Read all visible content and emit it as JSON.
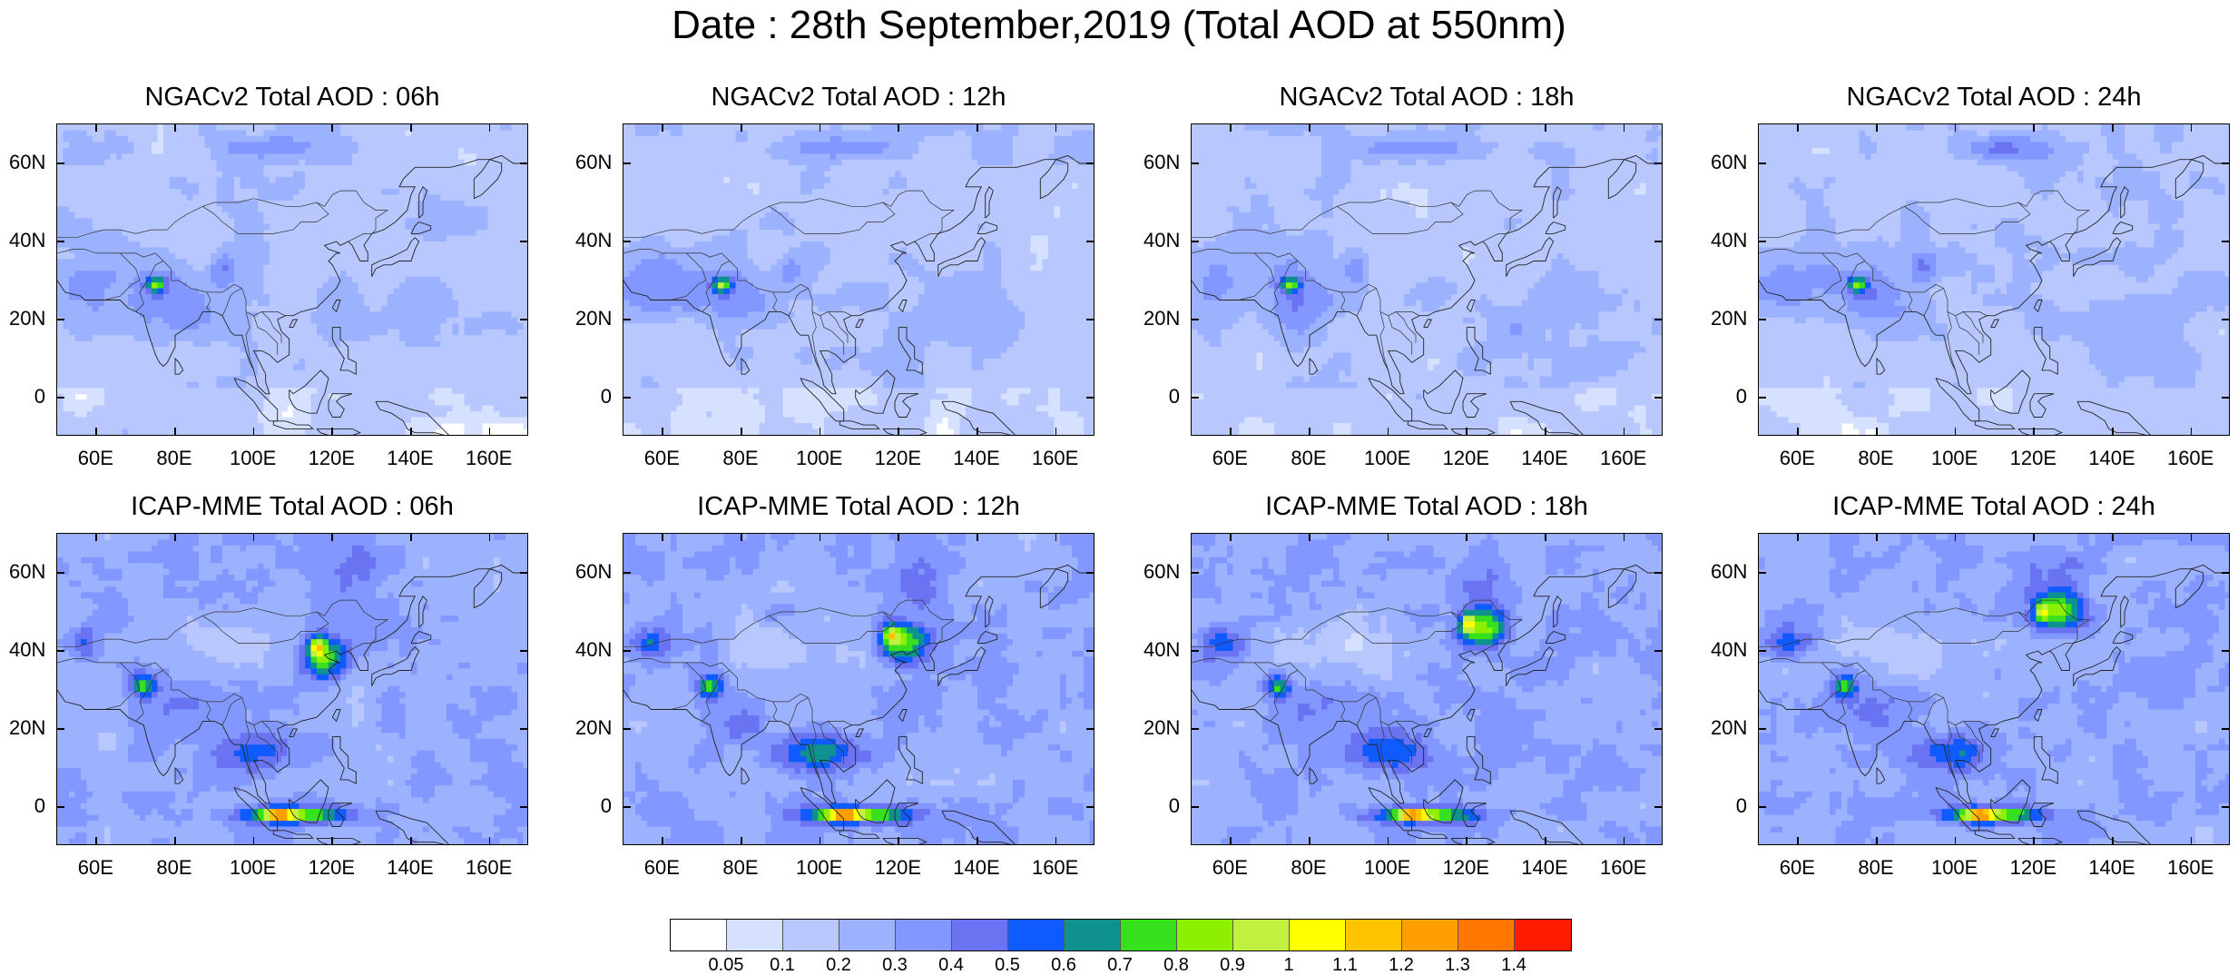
{
  "title": "Date : 28th September,2019 (Total AOD at 550nm)",
  "panels": [
    {
      "title": "NGACv2 Total AOD : 06h",
      "model": "NGACv2",
      "forecast_hour": "06h"
    },
    {
      "title": "NGACv2 Total AOD : 12h",
      "model": "NGACv2",
      "forecast_hour": "12h"
    },
    {
      "title": "NGACv2 Total AOD : 18h",
      "model": "NGACv2",
      "forecast_hour": "18h"
    },
    {
      "title": "NGACv2 Total AOD : 24h",
      "model": "NGACv2",
      "forecast_hour": "24h"
    },
    {
      "title": "ICAP-MME Total AOD : 06h",
      "model": "ICAP-MME",
      "forecast_hour": "06h"
    },
    {
      "title": "ICAP-MME Total AOD : 12h",
      "model": "ICAP-MME",
      "forecast_hour": "12h"
    },
    {
      "title": "ICAP-MME Total AOD : 18h",
      "model": "ICAP-MME",
      "forecast_hour": "18h"
    },
    {
      "title": "ICAP-MME Total AOD : 24h",
      "model": "ICAP-MME",
      "forecast_hour": "24h"
    }
  ],
  "axes": {
    "lat_labels": [
      "60N",
      "40N",
      "20N",
      "0"
    ],
    "lat_values": [
      60,
      40,
      20,
      0
    ],
    "lon_labels": [
      "60E",
      "80E",
      "100E",
      "120E",
      "140E",
      "160E"
    ],
    "lon_values": [
      60,
      80,
      100,
      120,
      140,
      160
    ],
    "lon_range": [
      50,
      170
    ],
    "lat_range": [
      -10,
      70
    ]
  },
  "colorbar": {
    "labels": [
      "0.05",
      "0.1",
      "0.2",
      "0.3",
      "0.4",
      "0.5",
      "0.6",
      "0.7",
      "0.8",
      "0.9",
      "1",
      "1.1",
      "1.2",
      "1.3",
      "1.4"
    ],
    "colors": [
      "#ffffff",
      "#d6e0ff",
      "#b8c8ff",
      "#9db2ff",
      "#8297ff",
      "#6a74f2",
      "#0f5bff",
      "#0f9190",
      "#36e01c",
      "#8cf000",
      "#c0f040",
      "#ffff00",
      "#ffc400",
      "#ff9e00",
      "#ff7600",
      "#ff1a00"
    ]
  }
}
